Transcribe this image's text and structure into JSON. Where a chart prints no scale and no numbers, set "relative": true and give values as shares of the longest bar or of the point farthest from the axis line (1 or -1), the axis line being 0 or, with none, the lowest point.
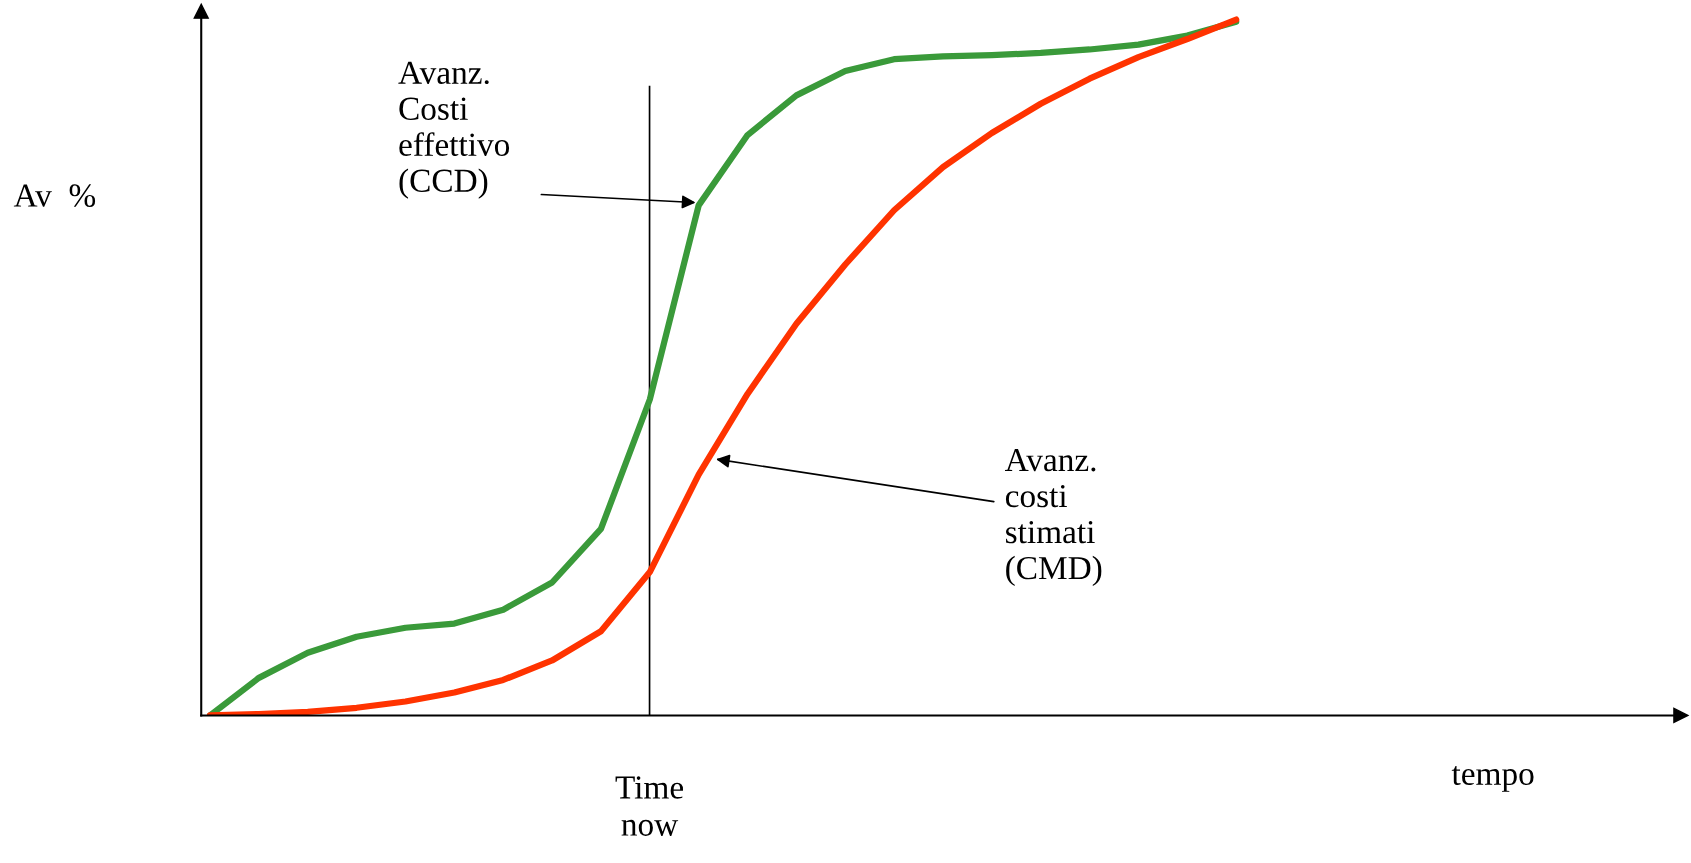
{
  "chart_data": {
    "type": "line",
    "relative": true,
    "ylabel": "Av  %",
    "xlabel": "tempo",
    "categories": [
      null,
      null,
      null,
      null,
      null,
      null,
      null,
      null,
      null,
      null,
      null,
      null,
      null,
      null,
      null,
      null,
      null,
      null,
      null,
      null,
      null,
      null,
      null,
      null,
      null,
      null,
      null,
      null,
      null,
      null,
      null
    ],
    "series": [
      {
        "color": "#3a9a3a",
        "values": [
          0,
          0.054,
          0.09,
          0.113,
          0.126,
          0.132,
          0.152,
          0.191,
          0.268,
          0.454,
          0.733,
          0.834,
          0.891,
          0.926,
          0.943,
          0.947,
          0.949,
          0.952,
          0.957,
          0.964,
          0.977,
          0.997,
          null,
          null,
          null,
          null,
          null,
          null,
          null,
          null,
          null
        ]
      },
      {
        "color": "#ff3300",
        "values": [
          0,
          0.002,
          0.005,
          0.011,
          0.02,
          0.033,
          0.051,
          0.079,
          0.121,
          0.206,
          0.346,
          0.462,
          0.563,
          0.648,
          0.726,
          0.788,
          0.837,
          0.879,
          0.915,
          0.946,
          0.972,
          1.0,
          null,
          null,
          null,
          null,
          null,
          null,
          null,
          null,
          null
        ]
      }
    ],
    "annotations": [
      "Avanz.\nCosti\neffettivo\n(CCD)",
      "Avanz.\ncosti\nstimati\n(CMD)",
      "Time\nnow"
    ],
    "legend": false,
    "marker": "none",
    "line_style": "solid"
  }
}
